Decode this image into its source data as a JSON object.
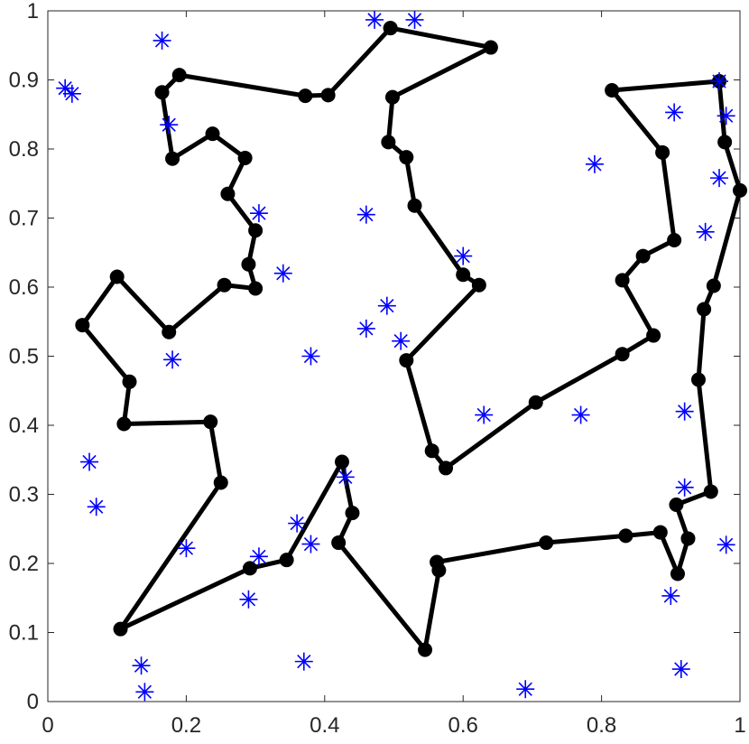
{
  "chart_data": {
    "type": "scatter",
    "title": "",
    "xlabel": "",
    "ylabel": "",
    "xlim": [
      0,
      1
    ],
    "ylim": [
      0,
      1
    ],
    "xticks": [
      "0",
      "0.2",
      "0.4",
      "0.6",
      "0.8",
      "1"
    ],
    "yticks": [
      "0",
      "0.1",
      "0.2",
      "0.3",
      "0.4",
      "0.5",
      "0.6",
      "0.7",
      "0.8",
      "0.9",
      "1"
    ],
    "grid": false,
    "colors": {
      "path": "#000000",
      "stars": "#0000ff",
      "axes": "#262626"
    },
    "series": [
      {
        "type": "line-markers",
        "marker": "filled-circle",
        "points": [
          [
            0.495,
            0.975
          ],
          [
            0.64,
            0.947
          ],
          [
            0.498,
            0.875
          ],
          [
            0.492,
            0.81
          ],
          [
            0.518,
            0.788
          ],
          [
            0.53,
            0.718
          ],
          [
            0.6,
            0.618
          ],
          [
            0.623,
            0.603
          ],
          [
            0.518,
            0.494
          ],
          [
            0.555,
            0.363
          ],
          [
            0.575,
            0.338
          ],
          [
            0.705,
            0.433
          ],
          [
            0.83,
            0.503
          ],
          [
            0.875,
            0.53
          ],
          [
            0.83,
            0.61
          ],
          [
            0.86,
            0.645
          ],
          [
            0.905,
            0.668
          ],
          [
            0.888,
            0.795
          ],
          [
            0.815,
            0.885
          ],
          [
            0.97,
            0.898
          ],
          [
            0.978,
            0.81
          ],
          [
            1.0,
            0.74
          ],
          [
            0.962,
            0.602
          ],
          [
            0.948,
            0.568
          ],
          [
            0.94,
            0.466
          ],
          [
            0.958,
            0.304
          ],
          [
            0.908,
            0.285
          ],
          [
            0.925,
            0.236
          ],
          [
            0.91,
            0.185
          ],
          [
            0.885,
            0.245
          ],
          [
            0.835,
            0.24
          ],
          [
            0.72,
            0.23
          ],
          [
            0.562,
            0.202
          ],
          [
            0.565,
            0.19
          ],
          [
            0.545,
            0.075
          ],
          [
            0.42,
            0.23
          ],
          [
            0.44,
            0.273
          ],
          [
            0.425,
            0.347
          ],
          [
            0.345,
            0.205
          ],
          [
            0.292,
            0.193
          ],
          [
            0.105,
            0.105
          ],
          [
            0.25,
            0.317
          ],
          [
            0.235,
            0.405
          ],
          [
            0.11,
            0.402
          ],
          [
            0.118,
            0.463
          ],
          [
            0.05,
            0.545
          ],
          [
            0.1,
            0.615
          ],
          [
            0.175,
            0.535
          ],
          [
            0.255,
            0.603
          ],
          [
            0.3,
            0.598
          ],
          [
            0.29,
            0.633
          ],
          [
            0.3,
            0.682
          ],
          [
            0.26,
            0.735
          ],
          [
            0.285,
            0.787
          ],
          [
            0.238,
            0.822
          ],
          [
            0.18,
            0.786
          ],
          [
            0.165,
            0.882
          ],
          [
            0.19,
            0.907
          ],
          [
            0.372,
            0.877
          ],
          [
            0.405,
            0.878
          ],
          [
            0.495,
            0.975
          ]
        ]
      },
      {
        "type": "scatter",
        "marker": "asterisk",
        "points": [
          [
            0.472,
            0.987
          ],
          [
            0.53,
            0.987
          ],
          [
            0.165,
            0.957
          ],
          [
            0.025,
            0.888
          ],
          [
            0.035,
            0.88
          ],
          [
            0.175,
            0.835
          ],
          [
            0.305,
            0.707
          ],
          [
            0.46,
            0.705
          ],
          [
            0.34,
            0.62
          ],
          [
            0.6,
            0.645
          ],
          [
            0.79,
            0.778
          ],
          [
            0.905,
            0.853
          ],
          [
            0.98,
            0.848
          ],
          [
            0.97,
            0.898
          ],
          [
            0.97,
            0.758
          ],
          [
            0.95,
            0.68
          ],
          [
            0.49,
            0.573
          ],
          [
            0.46,
            0.54
          ],
          [
            0.51,
            0.522
          ],
          [
            0.38,
            0.5
          ],
          [
            0.18,
            0.495
          ],
          [
            0.63,
            0.415
          ],
          [
            0.77,
            0.415
          ],
          [
            0.92,
            0.42
          ],
          [
            0.06,
            0.347
          ],
          [
            0.07,
            0.282
          ],
          [
            0.43,
            0.325
          ],
          [
            0.92,
            0.31
          ],
          [
            0.36,
            0.258
          ],
          [
            0.38,
            0.228
          ],
          [
            0.305,
            0.21
          ],
          [
            0.2,
            0.222
          ],
          [
            0.29,
            0.148
          ],
          [
            0.9,
            0.153
          ],
          [
            0.98,
            0.227
          ],
          [
            0.37,
            0.058
          ],
          [
            0.135,
            0.052
          ],
          [
            0.14,
            0.014
          ],
          [
            0.69,
            0.018
          ],
          [
            0.915,
            0.047
          ]
        ]
      }
    ]
  }
}
